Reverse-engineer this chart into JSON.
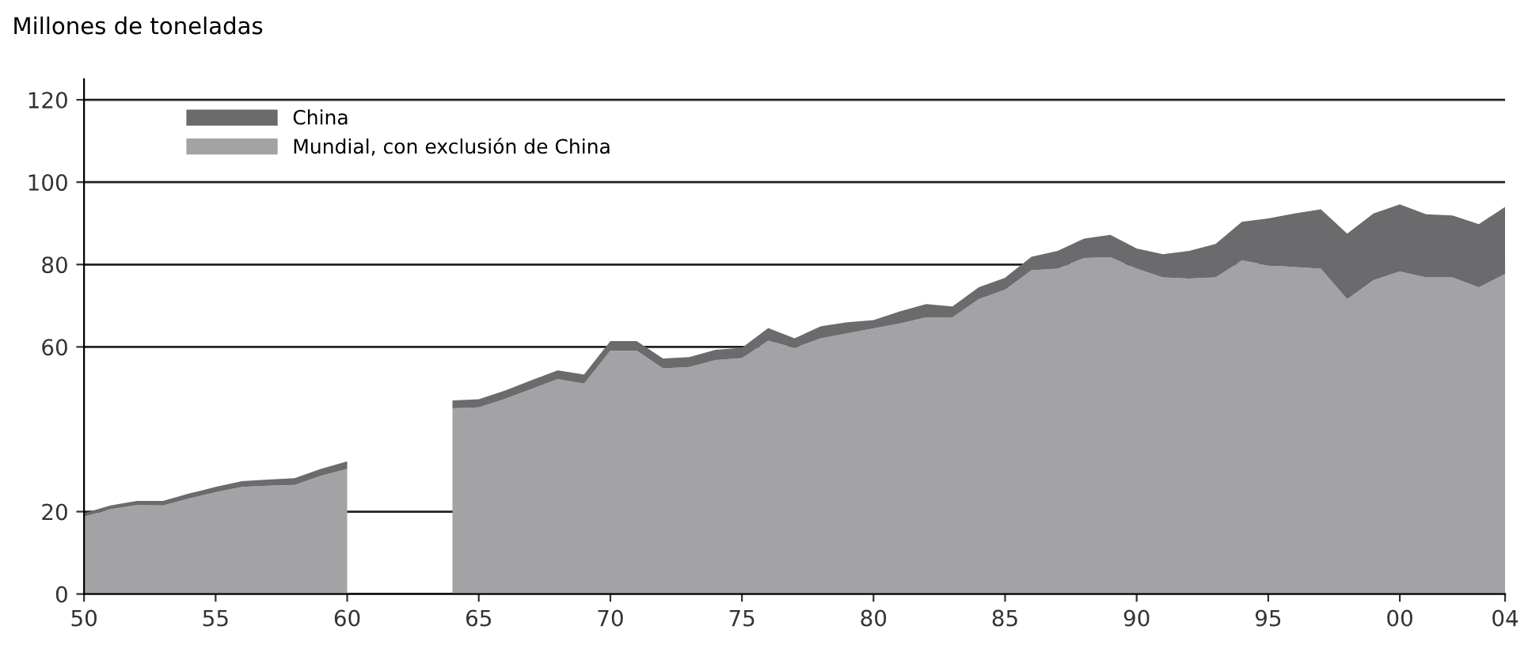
{
  "chart_data": {
    "type": "area",
    "stacked": true,
    "ylabel": "Millones de toneladas",
    "x": [
      1950,
      1951,
      1952,
      1953,
      1954,
      1955,
      1956,
      1957,
      1958,
      1959,
      1960,
      1961,
      1962,
      1963,
      1964,
      1965,
      1966,
      1967,
      1968,
      1969,
      1970,
      1971,
      1972,
      1973,
      1974,
      1975,
      1976,
      1977,
      1978,
      1979,
      1980,
      1981,
      1982,
      1983,
      1984,
      1985,
      1986,
      1987,
      1988,
      1989,
      1990,
      1991,
      1992,
      1993,
      1994,
      1995,
      1996,
      1997,
      1998,
      1999,
      2000,
      2001,
      2002,
      2003,
      2004
    ],
    "series": [
      {
        "name": "Mundial, con exclusión de China",
        "color": "#a3a3a5",
        "values": [
          18.8,
          20.6,
          21.6,
          21.5,
          23.2,
          24.7,
          26,
          26.3,
          26.5,
          28.7,
          30.4,
          null,
          null,
          null,
          45.1,
          45.3,
          47.4,
          49.8,
          52.2,
          51.1,
          59.1,
          59.1,
          54.8,
          55.1,
          56.8,
          57.3,
          61.5,
          59.8,
          62.1,
          63.3,
          64.5,
          65.7,
          67.2,
          67.2,
          71.6,
          73.9,
          78.6,
          79,
          81.6,
          81.8,
          79,
          76.9,
          76.6,
          76.9,
          81,
          79.8,
          79.4,
          79,
          71.6,
          76.2,
          78.3,
          76.9,
          76.9,
          74.5,
          77.7
        ]
      },
      {
        "name": "China",
        "color": "#6b6b6d",
        "values": [
          0.8,
          0.9,
          1.0,
          1.1,
          1.2,
          1.3,
          1.4,
          1.5,
          1.6,
          1.7,
          1.8,
          null,
          null,
          null,
          1.9,
          2.0,
          2.0,
          2.1,
          2.1,
          2.2,
          2.3,
          2.3,
          2.4,
          2.4,
          2.5,
          2.5,
          3.1,
          2.3,
          2.9,
          2.7,
          2.0,
          2.9,
          3.2,
          2.6,
          2.9,
          2.9,
          3.3,
          4.3,
          4.7,
          5.4,
          4.9,
          5.6,
          6.7,
          8.1,
          9.4,
          11.4,
          13,
          14.4,
          15.9,
          16.2,
          16.3,
          15.3,
          15,
          15.3,
          16.3
        ]
      }
    ],
    "xlim": [
      1950,
      2004
    ],
    "xticks": [
      {
        "value": 1950,
        "label": "50"
      },
      {
        "value": 1955,
        "label": "55"
      },
      {
        "value": 1960,
        "label": "60"
      },
      {
        "value": 1965,
        "label": "65"
      },
      {
        "value": 1970,
        "label": "70"
      },
      {
        "value": 1975,
        "label": "75"
      },
      {
        "value": 1980,
        "label": "80"
      },
      {
        "value": 1985,
        "label": "85"
      },
      {
        "value": 1990,
        "label": "90"
      },
      {
        "value": 1995,
        "label": "95"
      },
      {
        "value": 2000,
        "label": "00"
      },
      {
        "value": 2004,
        "label": "04"
      }
    ],
    "ylim": [
      0,
      125
    ],
    "yticks": [
      0,
      20,
      60,
      80,
      100,
      120
    ],
    "grid": "y",
    "legend": "top left"
  }
}
